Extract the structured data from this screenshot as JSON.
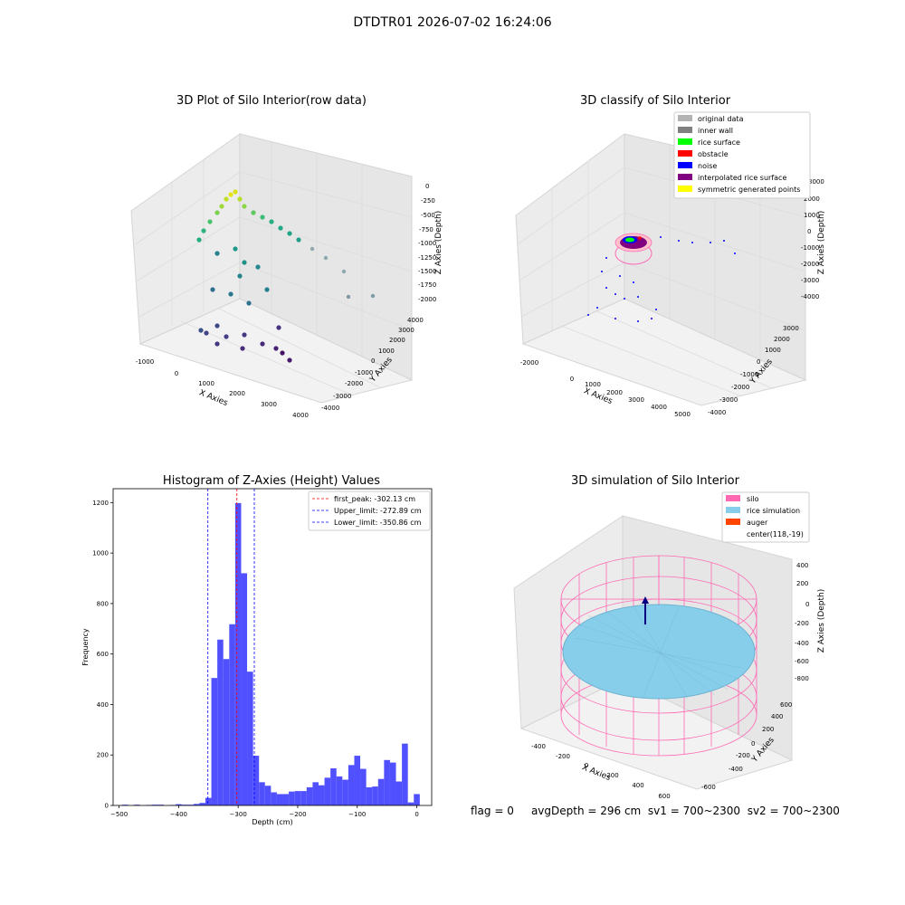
{
  "suptitle": "DTDTR01 2026-07-02 16:24:06",
  "panels": {
    "raw": {
      "title": "3D Plot of Silo Interior(row data)",
      "xlabel": "X Axies",
      "ylabel": "Y Axies",
      "zlabel": "Z Axies (Depth)",
      "xticks": [
        "-1000",
        "0",
        "1000",
        "2000",
        "3000",
        "4000"
      ],
      "yticks": [
        "-4000",
        "-3000",
        "-2000",
        "-1000",
        "0",
        "1000",
        "2000",
        "3000",
        "4000"
      ],
      "zticks": [
        "0",
        "-250",
        "-500",
        "-750",
        "-1000",
        "-1250",
        "-1500",
        "-1750",
        "-2000"
      ],
      "colormap": "viridis"
    },
    "classify": {
      "title": "3D classify of Silo Interior",
      "xlabel": "X Axies",
      "ylabel": "Y Axies",
      "zlabel": "Z Axies (Depth)",
      "xticks": [
        "-2000",
        "0",
        "1000",
        "2000",
        "3000",
        "4000",
        "5000"
      ],
      "yticks": [
        "-4000",
        "-3000",
        "-2000",
        "-1000",
        "0",
        "1000",
        "2000",
        "3000"
      ],
      "zticks": [
        "3000",
        "2000",
        "1000",
        "0",
        "-1000",
        "-2000",
        "-3000",
        "-4000"
      ],
      "legend": [
        {
          "label": "original data",
          "color": "#b3b3b3"
        },
        {
          "label": "inner wall",
          "color": "#808080"
        },
        {
          "label": "rice surface",
          "color": "#00ff00"
        },
        {
          "label": "obstacle",
          "color": "#ff0000"
        },
        {
          "label": "noise",
          "color": "#0000ff"
        },
        {
          "label": "interpolated rice surface",
          "color": "#800080"
        },
        {
          "label": "symmetric generated points",
          "color": "#ffff00"
        }
      ]
    },
    "simulation": {
      "title": "3D simulation of Silo Interior",
      "xlabel": "X Axies",
      "ylabel": "Y Axies",
      "zlabel": "Z Axies (Depth)",
      "xticks": [
        "-400",
        "-200",
        "0",
        "200",
        "400",
        "600"
      ],
      "yticks": [
        "-600",
        "-400",
        "-200",
        "0",
        "200",
        "400",
        "600"
      ],
      "zticks": [
        "400",
        "200",
        "0",
        "-200",
        "-400",
        "-600",
        "-800"
      ],
      "legend": [
        {
          "label": "silo",
          "color": "#ff69b4"
        },
        {
          "label": "rice simulation",
          "color": "#87ceeb"
        },
        {
          "label": "auger",
          "color": "#ff4500"
        },
        {
          "label": "center(118,-19)",
          "color": ""
        }
      ]
    }
  },
  "chart_data": {
    "type": "bar",
    "title": "Histogram of Z-Axies (Height) Values",
    "xlabel": "Depth (cm)",
    "ylabel": "Frequency",
    "xlim": [
      -510,
      25
    ],
    "ylim": [
      0,
      1255
    ],
    "xticks": [
      -500,
      -400,
      -300,
      -200,
      -100,
      0
    ],
    "yticks": [
      0,
      200,
      400,
      600,
      800,
      1000,
      1200
    ],
    "bar_color": "#5050ff",
    "bins": [
      {
        "x0": -495,
        "x1": -485,
        "y": 3
      },
      {
        "x0": -475,
        "x1": -465,
        "y": 3
      },
      {
        "x0": -455,
        "x1": -445,
        "y": 2
      },
      {
        "x0": -445,
        "x1": -435,
        "y": 3
      },
      {
        "x0": -435,
        "x1": -425,
        "y": 3
      },
      {
        "x0": -415,
        "x1": -405,
        "y": 2
      },
      {
        "x0": -405,
        "x1": -395,
        "y": 5
      },
      {
        "x0": -395,
        "x1": -385,
        "y": 3
      },
      {
        "x0": -385,
        "x1": -375,
        "y": 3
      },
      {
        "x0": -375,
        "x1": -365,
        "y": 6
      },
      {
        "x0": -365,
        "x1": -355,
        "y": 10
      },
      {
        "x0": -355,
        "x1": -345,
        "y": 30
      },
      {
        "x0": -345,
        "x1": -335,
        "y": 505
      },
      {
        "x0": -335,
        "x1": -325,
        "y": 657
      },
      {
        "x0": -325,
        "x1": -315,
        "y": 580
      },
      {
        "x0": -315,
        "x1": -305,
        "y": 718
      },
      {
        "x0": -305,
        "x1": -295,
        "y": 1198
      },
      {
        "x0": -295,
        "x1": -285,
        "y": 920
      },
      {
        "x0": -285,
        "x1": -275,
        "y": 530
      },
      {
        "x0": -275,
        "x1": -265,
        "y": 197
      },
      {
        "x0": -265,
        "x1": -255,
        "y": 92
      },
      {
        "x0": -255,
        "x1": -245,
        "y": 78
      },
      {
        "x0": -245,
        "x1": -235,
        "y": 52
      },
      {
        "x0": -235,
        "x1": -225,
        "y": 45
      },
      {
        "x0": -225,
        "x1": -215,
        "y": 45
      },
      {
        "x0": -215,
        "x1": -205,
        "y": 55
      },
      {
        "x0": -205,
        "x1": -195,
        "y": 57
      },
      {
        "x0": -195,
        "x1": -185,
        "y": 57
      },
      {
        "x0": -185,
        "x1": -175,
        "y": 72
      },
      {
        "x0": -175,
        "x1": -165,
        "y": 92
      },
      {
        "x0": -165,
        "x1": -155,
        "y": 80
      },
      {
        "x0": -155,
        "x1": -145,
        "y": 110
      },
      {
        "x0": -145,
        "x1": -135,
        "y": 147
      },
      {
        "x0": -135,
        "x1": -125,
        "y": 115
      },
      {
        "x0": -125,
        "x1": -115,
        "y": 102
      },
      {
        "x0": -115,
        "x1": -105,
        "y": 160
      },
      {
        "x0": -105,
        "x1": -95,
        "y": 197
      },
      {
        "x0": -95,
        "x1": -85,
        "y": 145
      },
      {
        "x0": -85,
        "x1": -75,
        "y": 72
      },
      {
        "x0": -75,
        "x1": -65,
        "y": 75
      },
      {
        "x0": -65,
        "x1": -55,
        "y": 105
      },
      {
        "x0": -55,
        "x1": -45,
        "y": 180
      },
      {
        "x0": -45,
        "x1": -35,
        "y": 170
      },
      {
        "x0": -35,
        "x1": -25,
        "y": 95
      },
      {
        "x0": -25,
        "x1": -15,
        "y": 245
      },
      {
        "x0": -15,
        "x1": -5,
        "y": 12
      },
      {
        "x0": -5,
        "x1": 5,
        "y": 45
      }
    ],
    "vlines": [
      {
        "x": -302.13,
        "color": "#ff0000",
        "label": "first_peak: -302.13 cm"
      },
      {
        "x": -272.89,
        "color": "#0000ff",
        "label": "Upper_limit: -272.89 cm"
      },
      {
        "x": -350.86,
        "color": "#0000ff",
        "label": "Lower_limit: -350.86 cm"
      }
    ],
    "legend_position": "top-right"
  },
  "footer": {
    "flag": "flag = 0",
    "avg": "avgDepth = 296 cm",
    "sv1": "sv1 = 700~2300",
    "sv2": "sv2 = 700~2300"
  }
}
